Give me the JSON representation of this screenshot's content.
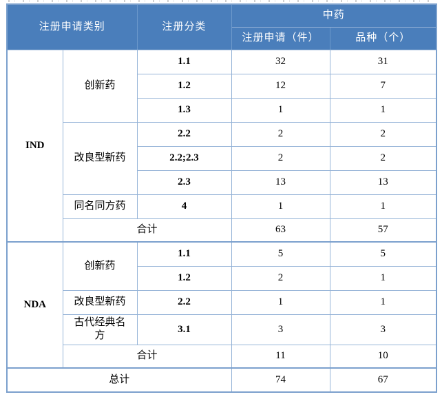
{
  "colors": {
    "header_bg": "#4a7ebb",
    "header_divider": "#6c99cb",
    "border_light": "#95b3d7",
    "border_outer": "#7ba0cd",
    "header_text": "#ffffff",
    "text_color": "#000000",
    "page_bg": "#ffffff"
  },
  "header": {
    "category": "注册申请类别",
    "classification": "注册分类",
    "group": "中药",
    "sub_applications": "注册申请（件）",
    "sub_varieties": "品种（个）"
  },
  "sections": [
    {
      "name": "IND",
      "groups": [
        {
          "label": "创新药",
          "rows": [
            {
              "cls": "1.1",
              "apps": "32",
              "vars": "31"
            },
            {
              "cls": "1.2",
              "apps": "12",
              "vars": "7"
            },
            {
              "cls": "1.3",
              "apps": "1",
              "vars": "1"
            }
          ]
        },
        {
          "label": "改良型新药",
          "rows": [
            {
              "cls": "2.2",
              "apps": "2",
              "vars": "2"
            },
            {
              "cls": "2.2;2.3",
              "apps": "2",
              "vars": "2"
            },
            {
              "cls": "2.3",
              "apps": "13",
              "vars": "13"
            }
          ]
        },
        {
          "label": "同名同方药",
          "rows": [
            {
              "cls": "4",
              "apps": "1",
              "vars": "1"
            }
          ]
        }
      ],
      "subtotal": {
        "label": "合计",
        "apps": "63",
        "vars": "57"
      }
    },
    {
      "name": "NDA",
      "groups": [
        {
          "label": "创新药",
          "rows": [
            {
              "cls": "1.1",
              "apps": "5",
              "vars": "5"
            },
            {
              "cls": "1.2",
              "apps": "2",
              "vars": "1"
            }
          ]
        },
        {
          "label": "改良型新药",
          "rows": [
            {
              "cls": "2.2",
              "apps": "1",
              "vars": "1"
            }
          ]
        },
        {
          "label": "古代经典名方",
          "rows": [
            {
              "cls": "3.1",
              "apps": "3",
              "vars": "3"
            }
          ]
        }
      ],
      "subtotal": {
        "label": "合计",
        "apps": "11",
        "vars": "10"
      }
    }
  ],
  "total": {
    "label": "总计",
    "apps": "74",
    "vars": "67"
  }
}
